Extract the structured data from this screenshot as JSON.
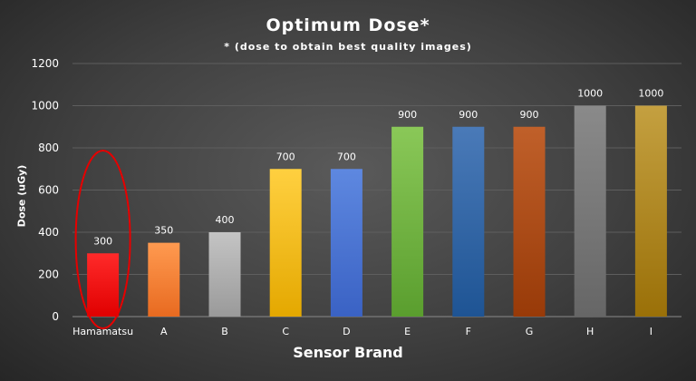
{
  "chart_data": {
    "type": "bar",
    "title": "Optimum  Dose*",
    "subtitle": "* (dose  to  obtain  best  quality  images)",
    "xlabel": "Sensor Brand",
    "ylabel": "Dose (uGy)",
    "categories": [
      "Hamamatsu",
      "A",
      "B",
      "C",
      "D",
      "E",
      "F",
      "G",
      "H",
      "I"
    ],
    "values": [
      300,
      350,
      400,
      700,
      700,
      900,
      900,
      900,
      1000,
      1000
    ],
    "data_labels": [
      "300",
      "350",
      "400",
      "700",
      "700",
      "900",
      "900",
      "900",
      "1000",
      "1000"
    ],
    "yticks": [
      "0",
      "200",
      "400",
      "600",
      "800",
      "1000",
      "1200"
    ],
    "ylim": [
      0,
      1200
    ],
    "grid": true,
    "legend": "none",
    "bar_colors": [
      [
        "#ff2a2a",
        "#e00000"
      ],
      [
        "#ff9a50",
        "#e86a20"
      ],
      [
        "#c4c4c4",
        "#9a9a9a"
      ],
      [
        "#ffd040",
        "#e4a800"
      ],
      [
        "#5e88e0",
        "#3a62c4"
      ],
      [
        "#8ac858",
        "#5a9e2e"
      ],
      [
        "#4a7ab8",
        "#1e5494"
      ],
      [
        "#c0602a",
        "#983a08"
      ],
      [
        "#8a8a8a",
        "#666666"
      ],
      [
        "#c4a040",
        "#9a7008"
      ]
    ],
    "highlight": {
      "category": "Hamamatsu",
      "color": "#e60000"
    }
  }
}
